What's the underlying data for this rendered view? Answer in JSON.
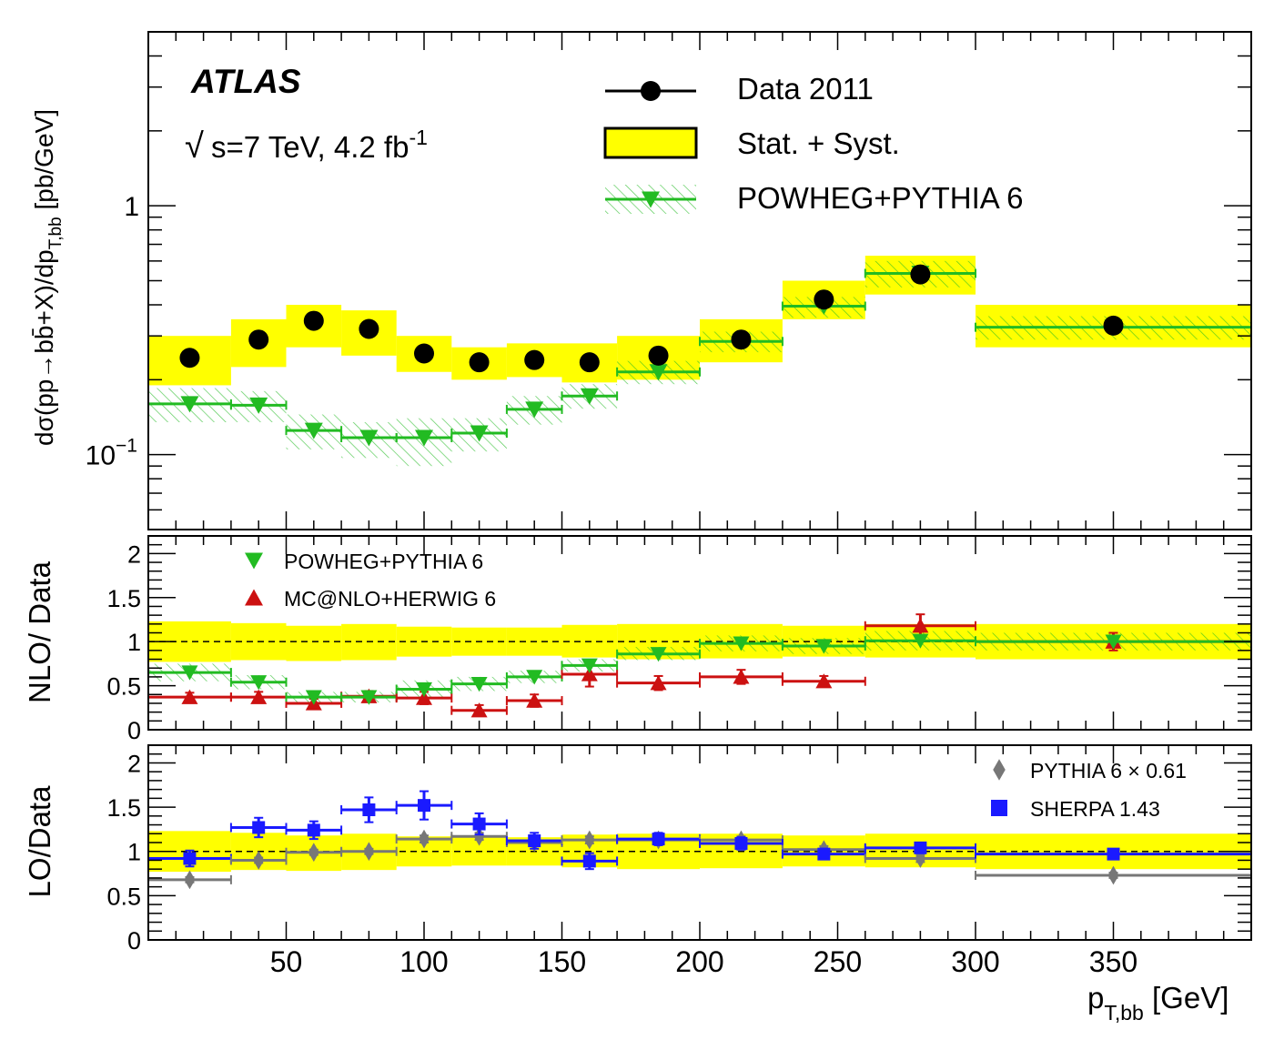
{
  "labels": {
    "experiment": "ATLAS",
    "sqrt_symbol": "√",
    "energy": "s=7 TeV, 4.2 fb",
    "lumi_exp": "-1",
    "top_ylabel_main": "dσ(pp→bb̄+X)/dp",
    "top_ylabel_sub": "T,bb",
    "top_ylabel_unit": " [pb/GeV]",
    "mid_ylabel": "NLO/ Data",
    "bot_ylabel": "LO/Data",
    "xlabel_main": "p",
    "xlabel_sub": "T,bb",
    "xlabel_unit": " [GeV]"
  },
  "legend_top": {
    "data": "Data 2011",
    "band": "Stat. + Syst.",
    "powheg": "POWHEG+PYTHIA 6"
  },
  "legend_mid": {
    "powheg": "POWHEG+PYTHIA 6",
    "mcatnlo": "MC@NLO+HERWIG 6"
  },
  "legend_bot": {
    "pythia": "PYTHIA 6 × 0.61",
    "sherpa": "SHERPA 1.43"
  },
  "colors": {
    "data": "#000000",
    "band": "#ffff00",
    "powheg": "#22bb22",
    "mcatnlo": "#cc1111",
    "pythia": "#777777",
    "sherpa": "#1a1aff"
  },
  "chart_data": [
    {
      "type": "scatter",
      "panel": "top",
      "ylabel": "dσ(pp→bb̄+X)/dp_T,bb [pb/GeV]",
      "xlim": [
        0,
        400
      ],
      "ylim": [
        0.05,
        5
      ],
      "yscale": "log",
      "ytick_labels": [
        "10−1",
        "1"
      ],
      "bins": [
        [
          0,
          30
        ],
        [
          30,
          50
        ],
        [
          50,
          70
        ],
        [
          70,
          90
        ],
        [
          90,
          110
        ],
        [
          110,
          130
        ],
        [
          130,
          150
        ],
        [
          150,
          170
        ],
        [
          170,
          200
        ],
        [
          200,
          230
        ],
        [
          230,
          260
        ],
        [
          260,
          300
        ],
        [
          300,
          400
        ]
      ],
      "x": [
        15,
        40,
        60,
        80,
        100,
        120,
        140,
        160,
        185,
        215,
        245,
        280,
        350
      ],
      "series": [
        {
          "name": "Data 2011",
          "values": [
            0.245,
            0.29,
            0.345,
            0.32,
            0.255,
            0.235,
            0.24,
            0.235,
            0.25,
            0.29,
            0.42,
            0.53,
            0.33
          ]
        },
        {
          "name": "Stat. + Syst.",
          "low": [
            0.19,
            0.225,
            0.27,
            0.25,
            0.215,
            0.2,
            0.205,
            0.195,
            0.2,
            0.235,
            0.35,
            0.44,
            0.27
          ],
          "high": [
            0.3,
            0.35,
            0.4,
            0.38,
            0.3,
            0.27,
            0.28,
            0.28,
            0.3,
            0.35,
            0.5,
            0.63,
            0.4
          ]
        },
        {
          "name": "POWHEG+PYTHIA 6",
          "values": [
            0.16,
            0.158,
            0.125,
            0.117,
            0.117,
            0.122,
            0.152,
            0.172,
            0.215,
            0.285,
            0.395,
            0.535,
            0.325
          ],
          "low": [
            0.135,
            0.135,
            0.105,
            0.097,
            0.09,
            0.103,
            0.132,
            0.153,
            0.192,
            0.258,
            0.355,
            0.47,
            0.29
          ],
          "high": [
            0.185,
            0.18,
            0.145,
            0.135,
            0.14,
            0.14,
            0.172,
            0.192,
            0.238,
            0.312,
            0.43,
            0.6,
            0.36
          ]
        }
      ]
    },
    {
      "type": "scatter",
      "panel": "middle",
      "ylabel": "NLO/ Data",
      "xlim": [
        0,
        400
      ],
      "ylim": [
        0,
        2.2
      ],
      "yticks": [
        0,
        0.5,
        1,
        1.5,
        2
      ],
      "reference_line": 1,
      "bins": [
        [
          0,
          30
        ],
        [
          30,
          50
        ],
        [
          50,
          70
        ],
        [
          70,
          90
        ],
        [
          90,
          110
        ],
        [
          110,
          130
        ],
        [
          130,
          150
        ],
        [
          150,
          170
        ],
        [
          170,
          200
        ],
        [
          200,
          230
        ],
        [
          230,
          260
        ],
        [
          260,
          300
        ],
        [
          300,
          400
        ]
      ],
      "x": [
        15,
        40,
        60,
        80,
        100,
        120,
        140,
        160,
        185,
        215,
        245,
        280,
        350
      ],
      "series": [
        {
          "name": "Stat. + Syst.",
          "low": [
            0.77,
            0.79,
            0.78,
            0.79,
            0.83,
            0.84,
            0.84,
            0.82,
            0.8,
            0.81,
            0.83,
            0.82,
            0.8
          ],
          "high": [
            1.23,
            1.21,
            1.18,
            1.2,
            1.17,
            1.16,
            1.16,
            1.19,
            1.2,
            1.2,
            1.18,
            1.2,
            1.2
          ]
        },
        {
          "name": "POWHEG+PYTHIA 6",
          "values": [
            0.65,
            0.54,
            0.37,
            0.37,
            0.46,
            0.52,
            0.6,
            0.73,
            0.86,
            0.98,
            0.95,
            1.01,
            1.0
          ],
          "band_low": [
            0.55,
            0.46,
            0.31,
            0.31,
            0.36,
            0.44,
            0.53,
            0.66,
            0.79,
            0.89,
            0.86,
            0.9,
            0.9
          ],
          "band_high": [
            0.75,
            0.62,
            0.43,
            0.43,
            0.56,
            0.6,
            0.67,
            0.8,
            0.94,
            1.07,
            1.04,
            1.12,
            1.1
          ]
        },
        {
          "name": "MC@NLO+HERWIG 6",
          "values": [
            0.37,
            0.37,
            0.3,
            0.38,
            0.36,
            0.22,
            0.33,
            0.63,
            0.53,
            0.6,
            0.55,
            1.18,
            1.0
          ],
          "errors": [
            0.05,
            0.06,
            0.05,
            0.06,
            0.07,
            0.06,
            0.07,
            0.14,
            0.08,
            0.08,
            0.06,
            0.13,
            0.1
          ]
        }
      ]
    },
    {
      "type": "scatter",
      "panel": "bottom",
      "ylabel": "LO/Data",
      "xlabel": "p_T,bb [GeV]",
      "xlim": [
        0,
        400
      ],
      "xticks": [
        50,
        100,
        150,
        200,
        250,
        300,
        350
      ],
      "ylim": [
        0,
        2.2
      ],
      "yticks": [
        0,
        0.5,
        1,
        1.5,
        2
      ],
      "reference_line": 1,
      "bins": [
        [
          0,
          30
        ],
        [
          30,
          50
        ],
        [
          50,
          70
        ],
        [
          70,
          90
        ],
        [
          90,
          110
        ],
        [
          110,
          130
        ],
        [
          130,
          150
        ],
        [
          150,
          170
        ],
        [
          170,
          200
        ],
        [
          200,
          230
        ],
        [
          230,
          260
        ],
        [
          260,
          300
        ],
        [
          300,
          400
        ]
      ],
      "x": [
        15,
        40,
        60,
        80,
        100,
        120,
        140,
        160,
        185,
        215,
        245,
        280,
        350
      ],
      "series": [
        {
          "name": "Stat. + Syst.",
          "low": [
            0.77,
            0.79,
            0.78,
            0.79,
            0.83,
            0.84,
            0.84,
            0.82,
            0.8,
            0.81,
            0.83,
            0.82,
            0.8
          ],
          "high": [
            1.23,
            1.21,
            1.18,
            1.2,
            1.17,
            1.16,
            1.16,
            1.19,
            1.2,
            1.2,
            1.18,
            1.2,
            1.2
          ]
        },
        {
          "name": "PYTHIA 6 × 0.61",
          "values": [
            0.68,
            0.9,
            0.99,
            1.0,
            1.14,
            1.17,
            1.1,
            1.13,
            1.13,
            1.13,
            1.02,
            0.92,
            0.73
          ],
          "errors": [
            0.03,
            0.03,
            0.03,
            0.03,
            0.04,
            0.04,
            0.04,
            0.04,
            0.04,
            0.04,
            0.04,
            0.04,
            0.03
          ]
        },
        {
          "name": "SHERPA 1.43",
          "values": [
            0.92,
            1.27,
            1.24,
            1.47,
            1.52,
            1.31,
            1.12,
            0.89,
            1.14,
            1.09,
            0.97,
            1.04,
            0.97
          ],
          "errors": [
            0.09,
            0.11,
            0.1,
            0.14,
            0.16,
            0.12,
            0.09,
            0.09,
            0.07,
            0.07,
            0.06,
            0.05,
            0.04
          ]
        }
      ]
    }
  ]
}
